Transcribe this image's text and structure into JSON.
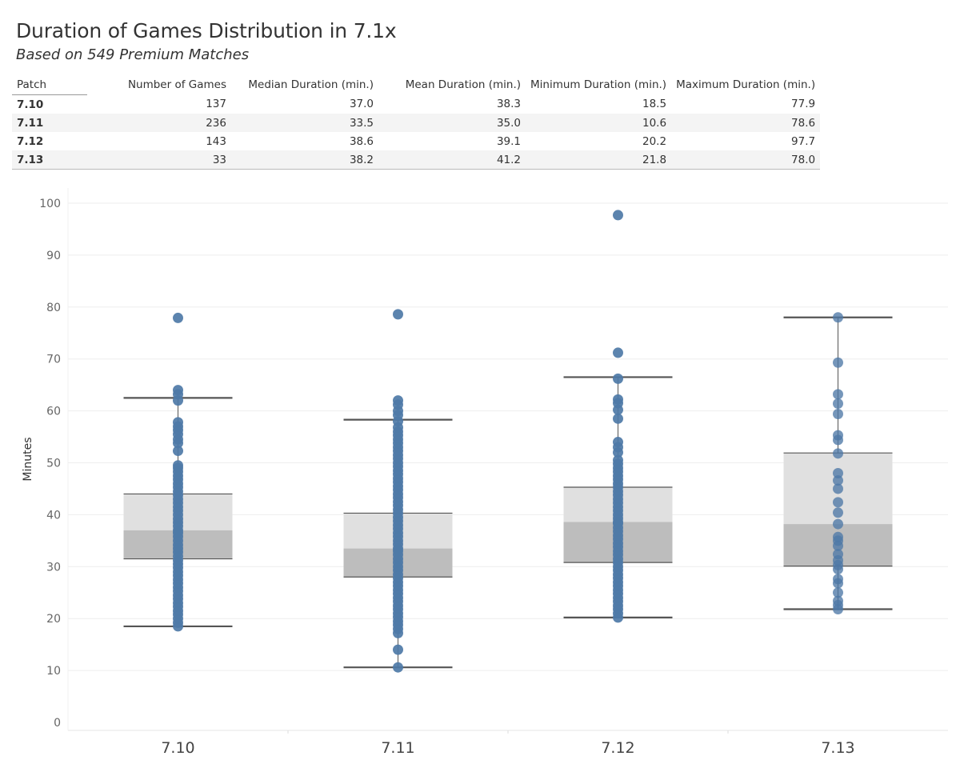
{
  "title": "Duration of Games Distribution in 7.1x",
  "subtitle": "Based on 549 Premium Matches",
  "table": {
    "headers": [
      "Patch",
      "Number of Games",
      "Median Duration (min.)",
      "Mean Duration (min.)",
      "Minimum Duration (min.)",
      "Maximum Duration (min.)"
    ],
    "rows": [
      [
        "7.10",
        "137",
        "37.0",
        "38.3",
        "18.5",
        "77.9"
      ],
      [
        "7.11",
        "236",
        "33.5",
        "35.0",
        "10.6",
        "78.6"
      ],
      [
        "7.12",
        "143",
        "38.6",
        "39.1",
        "20.2",
        "97.7"
      ],
      [
        "7.13",
        "33",
        "38.2",
        "41.2",
        "21.8",
        "78.0"
      ]
    ]
  },
  "colors": {
    "point": "#4e79a7",
    "box_upper": "#e0e0e0",
    "box_lower": "#bdbdbd",
    "whisker": "#555555",
    "grid": "#eeeeee"
  },
  "chart_data": {
    "type": "scatter",
    "subtype": "box-and-whisker with jittered points",
    "ylabel": "Minutes",
    "xlabel": "",
    "ylim": [
      0,
      100
    ],
    "yticks": [
      0,
      10,
      20,
      30,
      40,
      50,
      60,
      70,
      80,
      90,
      100
    ],
    "categories": [
      "7.10",
      "7.11",
      "7.12",
      "7.13"
    ],
    "boxes": [
      {
        "category": "7.10",
        "whisker_low": 18.5,
        "q1": 31.5,
        "median": 37.0,
        "q3": 44.0,
        "whisker_high": 62.5
      },
      {
        "category": "7.11",
        "whisker_low": 10.6,
        "q1": 28.0,
        "median": 33.5,
        "q3": 40.3,
        "whisker_high": 58.3
      },
      {
        "category": "7.12",
        "whisker_low": 20.2,
        "q1": 30.8,
        "median": 38.6,
        "q3": 45.3,
        "whisker_high": 66.5
      },
      {
        "category": "7.13",
        "whisker_low": 21.8,
        "q1": 30.1,
        "median": 38.2,
        "q3": 51.9,
        "whisker_high": 78.0
      }
    ],
    "points": [
      {
        "category": "7.10",
        "values": [
          18.5,
          19.2,
          20.0,
          20.8,
          21.5,
          22.3,
          23.0,
          23.8,
          24.5,
          25.3,
          26.0,
          26.8,
          27.5,
          28.3,
          29.0,
          29.8,
          30.5,
          31.2,
          32.0,
          32.8,
          33.5,
          34.2,
          35.0,
          35.8,
          36.5,
          37.0,
          37.8,
          38.5,
          39.2,
          40.0,
          40.8,
          41.5,
          42.3,
          43.0,
          43.8,
          44.5,
          45.3,
          46.0,
          46.8,
          47.5,
          48.3,
          49.0,
          49.5,
          52.3,
          53.8,
          54.5,
          55.5,
          56.3,
          57.0,
          57.8,
          62.0,
          63.2,
          64.0,
          77.9
        ]
      },
      {
        "category": "7.11",
        "values": [
          10.6,
          14.0,
          17.2,
          18.0,
          18.8,
          19.5,
          20.3,
          21.0,
          21.8,
          22.5,
          23.3,
          24.0,
          24.8,
          25.5,
          26.3,
          27.0,
          27.8,
          28.5,
          29.3,
          30.0,
          30.8,
          31.5,
          32.3,
          33.0,
          33.5,
          34.3,
          35.0,
          35.8,
          36.5,
          37.3,
          38.0,
          38.8,
          39.5,
          40.3,
          41.0,
          41.8,
          42.5,
          43.3,
          44.0,
          44.8,
          45.5,
          46.3,
          47.0,
          47.8,
          48.5,
          49.3,
          50.0,
          50.8,
          51.5,
          52.3,
          53.0,
          53.8,
          54.5,
          55.3,
          56.0,
          56.8,
          58.0,
          59.2,
          60.0,
          61.2,
          62.0,
          78.6
        ]
      },
      {
        "category": "7.12",
        "values": [
          20.2,
          21.0,
          21.8,
          22.5,
          23.3,
          24.0,
          24.8,
          25.5,
          26.3,
          27.0,
          27.8,
          28.5,
          29.3,
          30.0,
          30.8,
          31.5,
          32.3,
          33.0,
          33.8,
          34.5,
          35.3,
          36.0,
          36.8,
          37.5,
          38.3,
          38.6,
          39.3,
          40.0,
          40.8,
          41.5,
          42.3,
          43.0,
          43.8,
          44.5,
          45.3,
          46.0,
          46.8,
          47.5,
          48.3,
          49.0,
          49.8,
          50.5,
          52.0,
          53.0,
          54.0,
          58.5,
          60.2,
          61.5,
          62.2,
          66.2,
          71.2,
          97.7
        ]
      },
      {
        "category": "7.13",
        "values": [
          21.8,
          22.6,
          23.4,
          25.0,
          26.8,
          27.6,
          29.5,
          30.3,
          31.2,
          32.4,
          34.0,
          35.0,
          35.7,
          38.2,
          40.4,
          42.4,
          45.0,
          46.6,
          48.0,
          51.8,
          54.4,
          55.3,
          59.4,
          61.4,
          63.2,
          69.3,
          78.0
        ]
      }
    ]
  }
}
